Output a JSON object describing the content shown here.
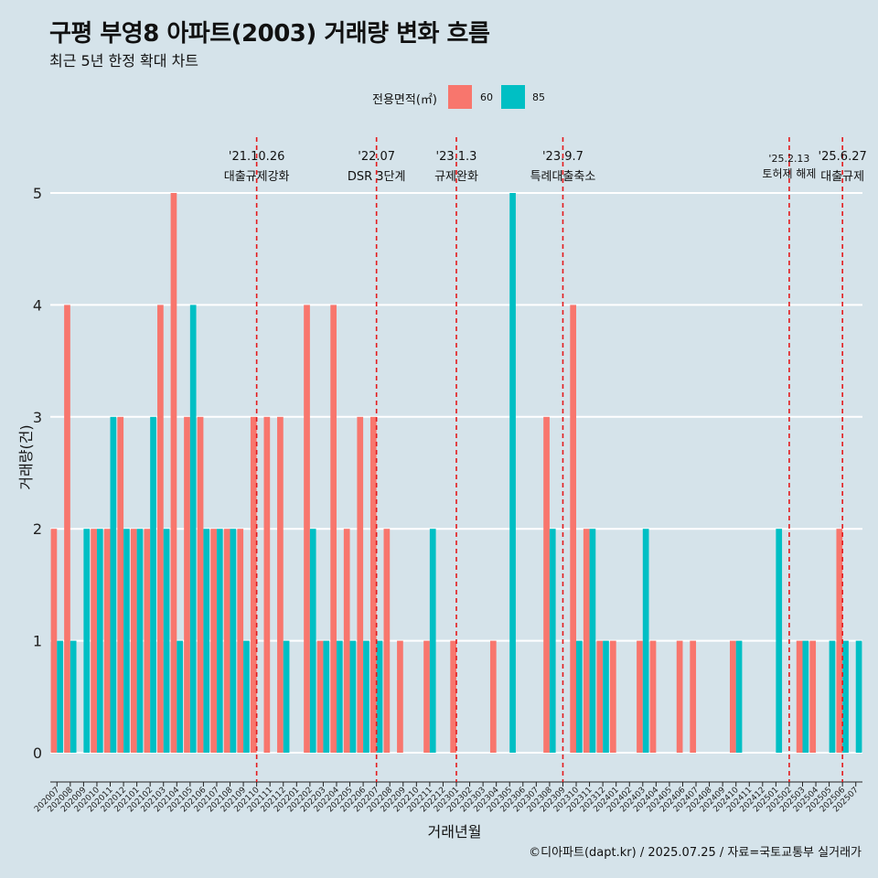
{
  "chart_data": {
    "type": "bar",
    "title": "구평 부영8 아파트(2003) 거래량 변화 흐름",
    "subtitle": "최근 5년 한정 확대 차트",
    "xlabel": "거래년월",
    "ylabel": "거래량(건)",
    "ylim": [
      0,
      5
    ],
    "yticks": [
      0,
      1,
      2,
      3,
      4,
      5
    ],
    "legend": {
      "title": "전용면적(㎡)",
      "position": "top"
    },
    "categories": [
      "202007",
      "202008",
      "202009",
      "202010",
      "202011",
      "202012",
      "202101",
      "202102",
      "202103",
      "202104",
      "202105",
      "202106",
      "202107",
      "202108",
      "202109",
      "202110",
      "202111",
      "202112",
      "202201",
      "202202",
      "202203",
      "202204",
      "202205",
      "202206",
      "202207",
      "202208",
      "202209",
      "202210",
      "202211",
      "202212",
      "202301",
      "202302",
      "202303",
      "202304",
      "202305",
      "202306",
      "202307",
      "202308",
      "202309",
      "202310",
      "202311",
      "202312",
      "202401",
      "202402",
      "202403",
      "202404",
      "202405",
      "202406",
      "202407",
      "202408",
      "202409",
      "202410",
      "202411",
      "202412",
      "202501",
      "202502",
      "202503",
      "202504",
      "202505",
      "202506",
      "202507"
    ],
    "series": [
      {
        "name": "60",
        "color": "#f8766d",
        "values": [
          2,
          4,
          0,
          2,
          2,
          3,
          2,
          2,
          4,
          5,
          3,
          3,
          2,
          2,
          2,
          3,
          3,
          3,
          0,
          4,
          1,
          4,
          2,
          3,
          3,
          2,
          1,
          0,
          1,
          0,
          1,
          0,
          0,
          1,
          0,
          0,
          0,
          3,
          0,
          4,
          2,
          1,
          1,
          0,
          1,
          1,
          0,
          1,
          1,
          0,
          0,
          1,
          0,
          0,
          0,
          0,
          1,
          1,
          0,
          2,
          0
        ]
      },
      {
        "name": "85",
        "color": "#00bfc4",
        "values": [
          1,
          1,
          2,
          2,
          3,
          2,
          2,
          3,
          2,
          1,
          4,
          2,
          2,
          2,
          1,
          0,
          0,
          1,
          0,
          2,
          1,
          1,
          1,
          1,
          1,
          0,
          0,
          0,
          2,
          0,
          0,
          0,
          0,
          0,
          5,
          0,
          0,
          2,
          0,
          1,
          2,
          1,
          0,
          0,
          2,
          0,
          0,
          0,
          0,
          0,
          0,
          1,
          0,
          0,
          2,
          0,
          1,
          0,
          1,
          1,
          1
        ]
      }
    ],
    "annotations": [
      {
        "category": "202110",
        "date": "'21.10.26",
        "label": "대출규제강화"
      },
      {
        "category": "202207",
        "date": "'22.07",
        "label": "DSR 3단계"
      },
      {
        "category": "202301",
        "date": "'23.1.3",
        "label": "규제완화"
      },
      {
        "category": "202309",
        "date": "'23.9.7",
        "label": "특례대출축소"
      },
      {
        "category": "202502",
        "date": "'25.2.13",
        "label": "토허제 해제"
      },
      {
        "category": "202506",
        "date": "'25.6.27",
        "label": "대출규제"
      }
    ],
    "caption": "©디아파트(dapt.kr) / 2025.07.25 / 자료=국토교통부 실거래가"
  },
  "colors": {
    "background": "#d5e3ea",
    "grid": "#ffffff",
    "event_line": "#e41a1c"
  }
}
